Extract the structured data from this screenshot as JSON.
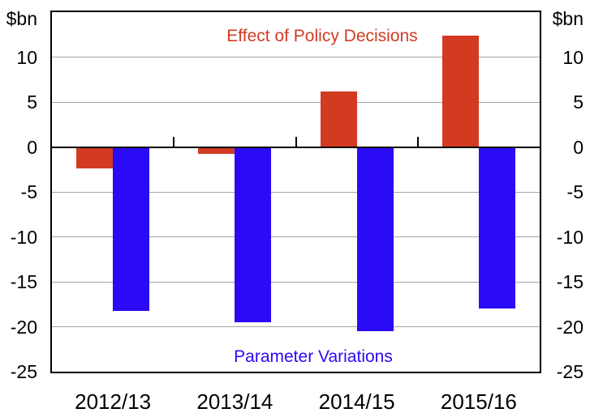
{
  "chart_data": {
    "type": "bar",
    "title": "",
    "unit_label": "$bn",
    "categories": [
      "2012/13",
      "2013/14",
      "2014/15",
      "2015/16"
    ],
    "series": [
      {
        "name": "Effect of Policy Decisions",
        "color": "#d23b22",
        "values": [
          -2.4,
          -0.8,
          6.2,
          12.4
        ]
      },
      {
        "name": "Parameter Variations",
        "color": "#2b0af5",
        "values": [
          -18.2,
          -19.5,
          -20.5,
          -18.0
        ]
      }
    ],
    "ylim": [
      -25,
      15
    ],
    "ytick_step": 5,
    "ytick_values": [
      10,
      5,
      0,
      -5,
      -10,
      -15,
      -20,
      -25
    ],
    "ytick_labels": [
      "10",
      "5",
      "0",
      "-5",
      "-10",
      "-15",
      "-20",
      "-25"
    ],
    "grid": true,
    "gridline_color": "#a6a6a6",
    "axis_color": "#000000",
    "legend_position": "inline-annotations",
    "ylabel_left": "$bn",
    "ylabel_right": "$bn"
  }
}
